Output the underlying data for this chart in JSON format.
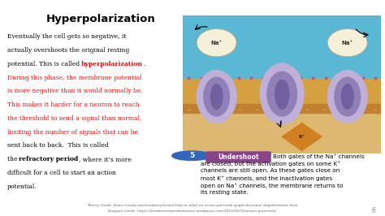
{
  "title": "Hyperpolarization",
  "lines": [
    [
      [
        "Eventually the cell gets so negative, it",
        "black",
        false
      ]
    ],
    [
      [
        "actually overshoots the original resting",
        "black",
        false
      ]
    ],
    [
      [
        "potential. This is called ",
        "black",
        false
      ],
      [
        "hyperpolarization",
        "red",
        true
      ],
      [
        ".",
        "black",
        false
      ]
    ],
    [
      [
        "During this phase, the membrane potential",
        "red",
        false
      ]
    ],
    [
      [
        "is more negative than it would normally be.",
        "red",
        false
      ]
    ],
    [
      [
        "This makes it harder for a neuron to reach",
        "red",
        false
      ]
    ],
    [
      [
        "the threshold to send a signal than normal,",
        "red",
        false
      ]
    ],
    [
      [
        "limiting the number of signals that can be",
        "red",
        false
      ]
    ],
    [
      [
        "sent back to back.  This is called",
        "black",
        false
      ]
    ],
    [
      [
        "the ",
        "black",
        false
      ],
      [
        "refractory period",
        "black",
        true
      ],
      [
        ", where it’s more",
        "black",
        false
      ]
    ],
    [
      [
        "difficult for a cell to start an action",
        "black",
        false
      ]
    ],
    [
      [
        "potential.",
        "black",
        false
      ]
    ]
  ],
  "undershoot_num": "5",
  "undershoot_label": "Undershoot",
  "undershoot_lines": [
    "Both gates of the Na⁺ channels",
    "are closed, but the activation gates on some K⁺",
    "channels are still open. As these gates close on",
    "most K⁺ channels, and the inactivation gates",
    "open on Na⁺ channels, the membrane returns to",
    "its resting state."
  ],
  "theory_credit": "Theory Credit: https://study.com/academy/lesson/how-to-label-an-action-potential-graph-decrease-depolarization.html",
  "diagram_credit": "Diagram Credit: https://dundeemedstudentnotes.wordpress.com/2012/04/10/action-potentials/",
  "bg_color": "#ffffff",
  "membrane_blue": "#5bb8d4",
  "membrane_orange": "#d4a040",
  "membrane_dark_orange": "#c08030",
  "membrane_light": "#ddb870",
  "channel_light": "#c0b0d8",
  "channel_dark": "#9080b8",
  "channel_mid": "#7060a0",
  "na_bubble": "#f5f0d8",
  "dot_color": "#cc5577",
  "diamond_color": "#d08020",
  "undershoot_purple": "#884488",
  "page_num": "6",
  "title_fontsize": 9.5,
  "body_fontsize": 5.5,
  "credit_fontsize": 3.2,
  "undershoot_fontsize": 5.2
}
